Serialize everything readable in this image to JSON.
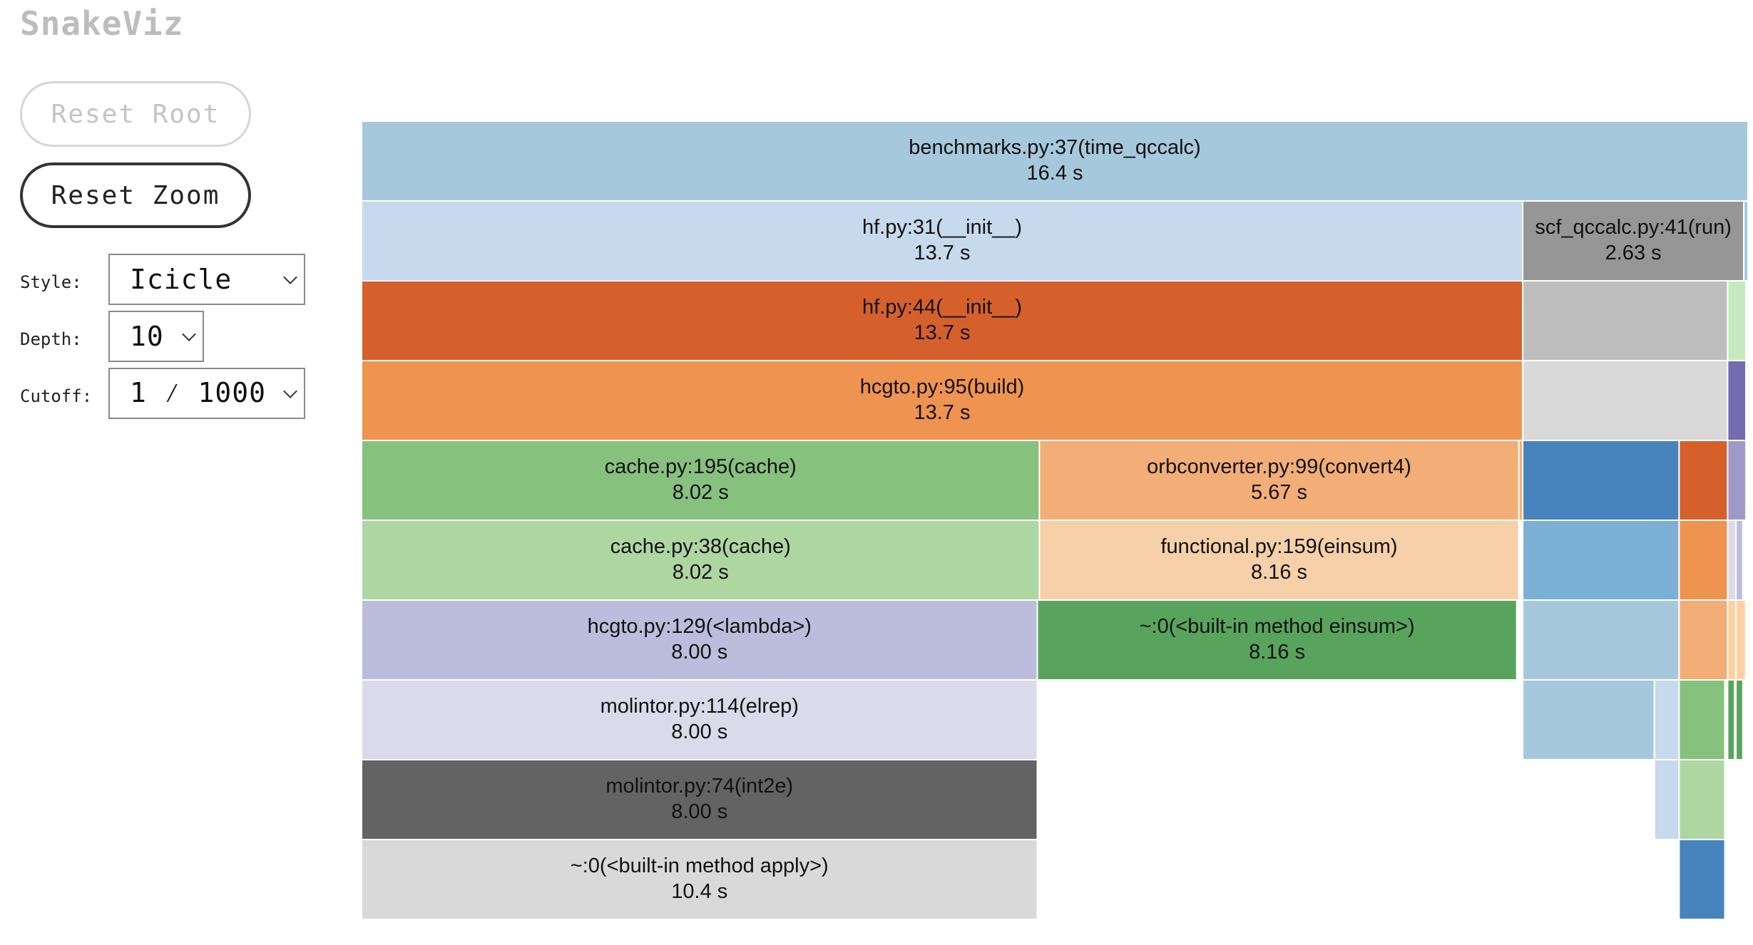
{
  "app": {
    "title": "SnakeViz"
  },
  "controls": {
    "reset_root_label": "Reset Root",
    "reset_zoom_label": "Reset Zoom",
    "style_label": "Style:",
    "style_value": "Icicle",
    "depth_label": "Depth:",
    "depth_value": "10",
    "cutoff_label": "Cutoff:",
    "cutoff_value": "1 ⁄ 1000"
  },
  "icicle": {
    "total_time": 16.4,
    "max_depth": 10,
    "nodes": [
      {
        "label": "benchmarks.py:37(time_qccalc)",
        "time": "16.4 s",
        "depth": 0,
        "start": 0.0,
        "span": 1.0,
        "color": "#a6c8dc"
      },
      {
        "label": "hf.py:31(__init__)",
        "time": "13.7 s",
        "depth": 1,
        "start": 0.0,
        "span": 0.8375,
        "color": "#c7d9ec"
      },
      {
        "label": "scf_qccalc.py:41(run)",
        "time": "2.63 s",
        "depth": 1,
        "start": 0.8375,
        "span": 0.1595,
        "color": "#969696"
      },
      {
        "label": "",
        "time": "",
        "depth": 1,
        "start": 0.997,
        "span": 0.003,
        "color": "#9ecae1"
      },
      {
        "label": "hf.py:44(__init__)",
        "time": "13.7 s",
        "depth": 2,
        "start": 0.0,
        "span": 0.8375,
        "color": "#d6602b"
      },
      {
        "label": "",
        "time": "",
        "depth": 2,
        "start": 0.8375,
        "span": 0.1478,
        "color": "#bdbdbd"
      },
      {
        "label": "",
        "time": "",
        "depth": 2,
        "start": 0.9853,
        "span": 0.0132,
        "color": "#c7e9c0"
      },
      {
        "label": "hcgto.py:95(build)",
        "time": "13.7 s",
        "depth": 3,
        "start": 0.0,
        "span": 0.8375,
        "color": "#ef9350"
      },
      {
        "label": "",
        "time": "",
        "depth": 3,
        "start": 0.8375,
        "span": 0.1478,
        "color": "#d9d9d9"
      },
      {
        "label": "",
        "time": "",
        "depth": 3,
        "start": 0.9853,
        "span": 0.0132,
        "color": "#756bb1"
      },
      {
        "label": "cache.py:195(cache)",
        "time": "8.02 s",
        "depth": 4,
        "start": 0.0,
        "span": 0.4889,
        "color": "#86c17d"
      },
      {
        "label": "orbconverter.py:99(convert4)",
        "time": "5.67 s",
        "depth": 4,
        "start": 0.4889,
        "span": 0.3458,
        "color": "#f2ae76"
      },
      {
        "label": "",
        "time": "",
        "depth": 4,
        "start": 0.8347,
        "span": 0.0028,
        "color": "#fdae6b"
      },
      {
        "label": "",
        "time": "",
        "depth": 4,
        "start": 0.8375,
        "span": 0.1128,
        "color": "#4783bd"
      },
      {
        "label": "",
        "time": "",
        "depth": 4,
        "start": 0.9503,
        "span": 0.035,
        "color": "#d6602b"
      },
      {
        "label": "",
        "time": "",
        "depth": 4,
        "start": 0.9853,
        "span": 0.0132,
        "color": "#9e9ac8"
      },
      {
        "label": "cache.py:38(cache)",
        "time": "8.02 s",
        "depth": 5,
        "start": 0.0,
        "span": 0.4889,
        "color": "#aed6a1"
      },
      {
        "label": "functional.py:159(einsum)",
        "time": "8.16 s",
        "depth": 5,
        "start": 0.4889,
        "span": 0.3458,
        "color": "#f6d0a8"
      },
      {
        "label": "",
        "time": "",
        "depth": 5,
        "start": 0.8375,
        "span": 0.1128,
        "color": "#7bafd5"
      },
      {
        "label": "",
        "time": "",
        "depth": 5,
        "start": 0.9503,
        "span": 0.035,
        "color": "#ef9350"
      },
      {
        "label": "",
        "time": "",
        "depth": 5,
        "start": 0.9853,
        "span": 0.006,
        "color": "#dadaeb"
      },
      {
        "label": "",
        "time": "",
        "depth": 5,
        "start": 0.9913,
        "span": 0.005,
        "color": "#bcbddc"
      },
      {
        "label": "hcgto.py:129(<lambda>)",
        "time": "8.00 s",
        "depth": 6,
        "start": 0.0,
        "span": 0.4874,
        "color": "#bcbddc"
      },
      {
        "label": "~:0(<built-in method einsum>)",
        "time": "8.16 s",
        "depth": 6,
        "start": 0.4874,
        "span": 0.3458,
        "color": "#59a45c"
      },
      {
        "label": "",
        "time": "",
        "depth": 6,
        "start": 0.8375,
        "span": 0.1128,
        "color": "#a6c8dc"
      },
      {
        "label": "",
        "time": "",
        "depth": 6,
        "start": 0.9503,
        "span": 0.035,
        "color": "#f2ae76"
      },
      {
        "label": "",
        "time": "",
        "depth": 6,
        "start": 0.9853,
        "span": 0.006,
        "color": "#fdd0a2"
      },
      {
        "label": "",
        "time": "",
        "depth": 6,
        "start": 0.9913,
        "span": 0.007,
        "color": "#fdd0a2"
      },
      {
        "label": "molintor.py:114(elrep)",
        "time": "8.00 s",
        "depth": 7,
        "start": 0.0,
        "span": 0.4874,
        "color": "#dadaeb"
      },
      {
        "label": "",
        "time": "",
        "depth": 7,
        "start": 0.8375,
        "span": 0.095,
        "color": "#a6c8dc"
      },
      {
        "label": "",
        "time": "",
        "depth": 7,
        "start": 0.9325,
        "span": 0.0178,
        "color": "#c7d9ec"
      },
      {
        "label": "",
        "time": "",
        "depth": 7,
        "start": 0.9503,
        "span": 0.033,
        "color": "#86c17d"
      },
      {
        "label": "",
        "time": "",
        "depth": 7,
        "start": 0.9853,
        "span": 0.005,
        "color": "#59a45c"
      },
      {
        "label": "",
        "time": "",
        "depth": 7,
        "start": 0.9913,
        "span": 0.005,
        "color": "#59a45c"
      },
      {
        "label": "molintor.py:74(int2e)",
        "time": "8.00 s",
        "depth": 8,
        "start": 0.0,
        "span": 0.4874,
        "color": "#636363"
      },
      {
        "label": "",
        "time": "",
        "depth": 8,
        "start": 0.9325,
        "span": 0.0178,
        "color": "#c7d9ec"
      },
      {
        "label": "",
        "time": "",
        "depth": 8,
        "start": 0.9503,
        "span": 0.033,
        "color": "#aed6a1"
      },
      {
        "label": "~:0(<built-in method apply>)",
        "time": "10.4 s",
        "depth": 9,
        "start": 0.0,
        "span": 0.4874,
        "color": "#d9d9d9"
      },
      {
        "label": "",
        "time": "",
        "depth": 9,
        "start": 0.9503,
        "span": 0.033,
        "color": "#4783bd"
      }
    ]
  }
}
